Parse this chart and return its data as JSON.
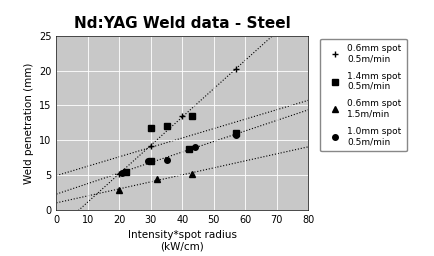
{
  "title": "Nd:YAG Weld data - Steel",
  "xlabel": "Intensity*spot radius\n(kW/cm)",
  "ylabel": "Weld penetration (mm)",
  "xlim": [
    0,
    80
  ],
  "ylim": [
    0,
    25
  ],
  "xticks": [
    0,
    10,
    20,
    30,
    40,
    50,
    60,
    70,
    80
  ],
  "yticks": [
    0,
    5,
    10,
    15,
    20,
    25
  ],
  "plot_bg": "#c8c8c8",
  "fig_bg": "#d8d8d8",
  "grid_color": "#b0b0b0",
  "series": [
    {
      "label": "0.6mm spot\n0.5m/min",
      "marker": "+",
      "markersize": 5,
      "x": [
        20,
        30,
        40,
        57
      ],
      "y": [
        5.2,
        9.2,
        13.5,
        20.2
      ]
    },
    {
      "label": "1.4mm spot\n0.5m/min",
      "marker": "s",
      "markersize": 4,
      "x": [
        22,
        30,
        30,
        35,
        42,
        43,
        57
      ],
      "y": [
        5.5,
        7.0,
        11.8,
        12.0,
        8.7,
        13.5,
        11.0
      ]
    },
    {
      "label": "0.6mm spot\n1.5m/min",
      "marker": "^",
      "markersize": 4,
      "x": [
        20,
        32,
        43
      ],
      "y": [
        2.9,
        4.5,
        5.2
      ]
    },
    {
      "label": "1.0mm spot\n0.5m/min",
      "marker": "o",
      "markersize": 4,
      "x": [
        21,
        29,
        35,
        42,
        44,
        57
      ],
      "y": [
        5.3,
        7.0,
        7.2,
        8.8,
        9.0,
        10.8
      ]
    }
  ]
}
